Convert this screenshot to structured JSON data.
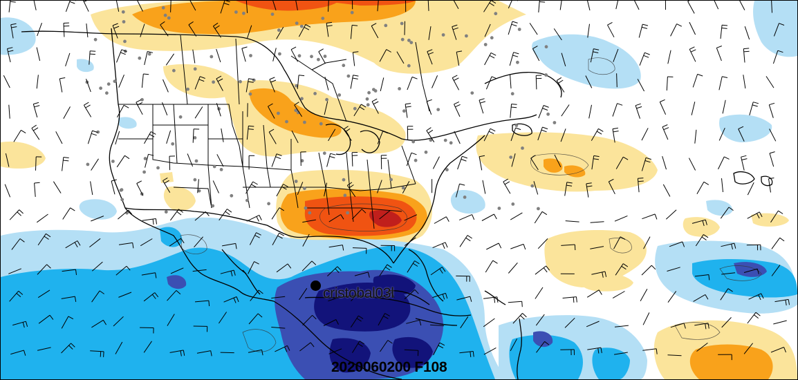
{
  "map": {
    "storm_name": "cristobal03l",
    "valid_time_label": "2020060200 F108"
  },
  "colors": {
    "anomaly_pos_1": "#fbe49b",
    "anomaly_pos_2": "#f9a21b",
    "anomaly_pos_3": "#f05312",
    "anomaly_pos_4": "#c01f1c",
    "anomaly_neg_1": "#b4dff5",
    "anomaly_neg_2": "#1fb2ee",
    "anomaly_neg_3": "#3b4fb3",
    "anomaly_neg_4": "#12137a",
    "coastline": "#000000",
    "stations": "#808080"
  }
}
